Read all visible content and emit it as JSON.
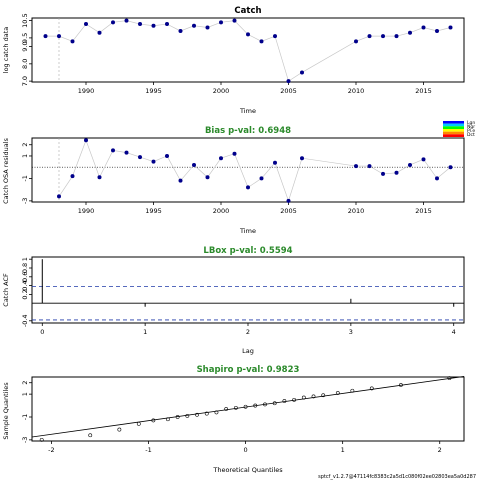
{
  "chart_data": [
    {
      "id": "catch",
      "type": "line",
      "title": "Catch",
      "xlabel": "Time",
      "ylabel": "log catch data",
      "x": [
        1987,
        1988,
        1989,
        1990,
        1991,
        1992,
        1993,
        1994,
        1995,
        1996,
        1997,
        1998,
        1999,
        2000,
        2001,
        2002,
        2003,
        2004,
        2005,
        2006,
        2010,
        2011,
        2012,
        2013,
        2014,
        2015,
        2016,
        2017
      ],
      "y": [
        9.6,
        9.6,
        9.3,
        10.3,
        9.8,
        10.4,
        10.5,
        10.3,
        10.2,
        10.3,
        9.9,
        10.2,
        10.1,
        10.4,
        10.5,
        9.7,
        9.3,
        9.6,
        7.0,
        7.5,
        9.3,
        9.6,
        9.6,
        9.6,
        9.8,
        10.1,
        9.9,
        10.1
      ],
      "xlim": [
        1986,
        2018
      ],
      "ylim": [
        6.95,
        10.65
      ],
      "xticks": [
        1990,
        1995,
        2000,
        2005,
        2010,
        2015
      ],
      "yticks": [
        7.0,
        8.0,
        9.0,
        9.5,
        10.5
      ],
      "ytick_labels": [
        "7.0",
        "8.0",
        "9.0",
        "9.5",
        "10.5"
      ],
      "vline_x": 1988
    },
    {
      "id": "osa",
      "type": "line",
      "title": "Bias p-val: 0.6948",
      "xlabel": "Time",
      "ylabel": "Catch OSA residuals",
      "x": [
        1988,
        1989,
        1990,
        1991,
        1992,
        1993,
        1994,
        1995,
        1996,
        1997,
        1998,
        1999,
        2000,
        2001,
        2002,
        2003,
        2004,
        2005,
        2006,
        2010,
        2011,
        2012,
        2013,
        2014,
        2015,
        2016,
        2017
      ],
      "y": [
        -2.6,
        -0.8,
        2.4,
        -0.9,
        1.5,
        1.3,
        0.9,
        0.5,
        1.0,
        -1.2,
        0.2,
        -0.9,
        0.8,
        1.2,
        -1.8,
        -1.0,
        0.4,
        -3.0,
        0.8,
        0.1,
        0.1,
        -0.6,
        -0.5,
        0.2,
        0.7,
        -1.0,
        0.0
      ],
      "xlim": [
        1986,
        2018
      ],
      "ylim": [
        -3.1,
        2.6
      ],
      "xticks": [
        1990,
        1995,
        2000,
        2005,
        2010,
        2015
      ],
      "yticks": [
        -3,
        -1,
        1,
        2
      ],
      "hline_y": 0,
      "vline_x": 1988,
      "legend_labels": [
        "Lgn",
        "Ngr",
        "Pl.e",
        "Dct"
      ],
      "legend_colors": [
        "#0000ff",
        "#00c8ff",
        "#00ff00",
        "#ffff00",
        "#ff8800",
        "#ff0000"
      ],
      "legend_position": "top-right"
    },
    {
      "id": "acf",
      "type": "bar",
      "title": "LBox p-val: 0.5594",
      "xlabel": "Lag",
      "ylabel": "Catch ACF",
      "x": [
        0,
        1,
        2,
        3,
        4
      ],
      "y": [
        1.0,
        -0.08,
        0.0,
        0.1,
        -0.08
      ],
      "xlim": [
        -0.1,
        4.1
      ],
      "ylim": [
        -0.45,
        1.05
      ],
      "xticks": [
        0,
        1,
        2,
        3,
        4
      ],
      "yticks": [
        -0.4,
        0.2,
        0.4,
        0.6,
        0.8,
        1.0
      ],
      "ci": [
        0.38,
        -0.38
      ]
    },
    {
      "id": "qq",
      "type": "scatter",
      "title": "Shapiro p-val: 0.9823",
      "xlabel": "Theoretical Quantiles",
      "ylabel": "Sample Quantiles",
      "x": [
        -2.1,
        -1.6,
        -1.3,
        -1.1,
        -0.95,
        -0.8,
        -0.7,
        -0.6,
        -0.5,
        -0.4,
        -0.3,
        -0.2,
        -0.1,
        0.0,
        0.1,
        0.2,
        0.3,
        0.4,
        0.5,
        0.6,
        0.7,
        0.8,
        0.95,
        1.1,
        1.3,
        1.6,
        2.1
      ],
      "y": [
        -3.0,
        -2.6,
        -2.1,
        -1.6,
        -1.3,
        -1.2,
        -1.0,
        -0.9,
        -0.8,
        -0.7,
        -0.6,
        -0.3,
        -0.2,
        -0.1,
        0.0,
        0.1,
        0.2,
        0.4,
        0.5,
        0.7,
        0.8,
        0.9,
        1.1,
        1.3,
        1.5,
        1.8,
        2.4
      ],
      "xlim": [
        -2.2,
        2.25
      ],
      "ylim": [
        -3.1,
        2.5
      ],
      "xticks": [
        -2,
        -1,
        0,
        1,
        2
      ],
      "yticks": [
        -3,
        -1,
        1,
        2
      ],
      "qq_line": [
        [
          -2.2,
          -2.75
        ],
        [
          2.25,
          2.55
        ]
      ]
    }
  ],
  "footer": "sptcf_v1.2.7@47114fc8383c2a5d1c080f02ee02803ea5a0d287"
}
